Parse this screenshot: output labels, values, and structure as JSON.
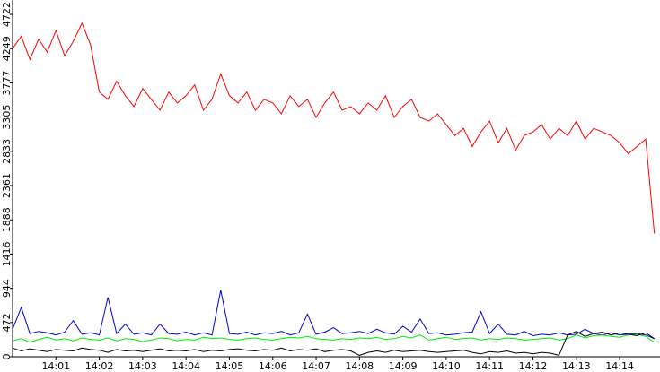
{
  "chart_data": {
    "type": "line",
    "x": [
      840,
      840.2,
      840.4,
      840.6,
      840.8,
      841,
      841.2,
      841.4,
      841.6,
      841.8,
      842,
      842.2,
      842.4,
      842.6,
      842.8,
      843,
      843.2,
      843.4,
      843.6,
      843.8,
      844,
      844.2,
      844.4,
      844.6,
      844.8,
      845,
      845.2,
      845.4,
      845.6,
      845.8,
      846,
      846.2,
      846.4,
      846.6,
      846.8,
      847,
      847.2,
      847.4,
      847.6,
      847.8,
      848,
      848.2,
      848.4,
      848.6,
      848.8,
      849,
      849.2,
      849.4,
      849.6,
      849.8,
      850,
      850.2,
      850.4,
      850.6,
      850.8,
      851,
      851.2,
      851.4,
      851.6,
      851.8,
      852,
      852.2,
      852.4,
      852.6,
      852.8,
      853,
      853.2,
      853.4,
      853.6,
      853.8,
      854,
      854.2,
      854.4,
      854.6,
      854.8
    ],
    "series": [
      {
        "color": "#ff0000",
        "values": [
          4250,
          4420,
          4100,
          4380,
          4200,
          4500,
          4150,
          4350,
          4600,
          4300,
          3650,
          3550,
          3800,
          3600,
          3450,
          3700,
          3550,
          3400,
          3650,
          3500,
          3600,
          3750,
          3400,
          3550,
          3900,
          3600,
          3500,
          3650,
          3400,
          3550,
          3500,
          3350,
          3600,
          3450,
          3550,
          3300,
          3500,
          3650,
          3400,
          3450,
          3350,
          3500,
          3400,
          3600,
          3300,
          3450,
          3550,
          3300,
          3250,
          3350,
          3200,
          3050,
          3150,
          2900,
          3100,
          3250,
          2950,
          3150,
          2850,
          3050,
          3100,
          3200,
          3000,
          3150,
          3050,
          3250,
          3000,
          3150,
          3100,
          3050,
          2950,
          2800,
          2900,
          3000,
          1700
        ]
      },
      {
        "color": "#0000cc",
        "values": [
          380,
          680,
          320,
          350,
          330,
          300,
          340,
          500,
          310,
          330,
          300,
          820,
          320,
          450,
          310,
          330,
          300,
          450,
          320,
          310,
          340,
          300,
          330,
          300,
          920,
          320,
          310,
          340,
          300,
          330,
          320,
          350,
          300,
          330,
          590,
          310,
          340,
          400,
          320,
          330,
          350,
          320,
          380,
          330,
          310,
          420,
          340,
          520,
          320,
          330,
          300,
          310,
          330,
          340,
          620,
          320,
          450,
          310,
          300,
          350,
          290,
          310,
          300,
          330,
          300,
          310,
          380,
          320,
          300,
          330,
          300,
          310,
          320,
          300,
          250
        ]
      },
      {
        "color": "#00ee00",
        "values": [
          220,
          250,
          200,
          240,
          270,
          230,
          250,
          220,
          260,
          240,
          230,
          260,
          220,
          250,
          240,
          210,
          230,
          260,
          250,
          220,
          240,
          230,
          270,
          250,
          260,
          240,
          230,
          250,
          260,
          240,
          230,
          250,
          270,
          260,
          280,
          250,
          240,
          230,
          250,
          240,
          260,
          250,
          270,
          240,
          250,
          280,
          260,
          300,
          230,
          250,
          270,
          240,
          250,
          260,
          230,
          250,
          240,
          260,
          250,
          230,
          240,
          250,
          260,
          230,
          250,
          300,
          260,
          290,
          300,
          280,
          270,
          300,
          310,
          280,
          200
        ]
      },
      {
        "color": "#000000",
        "values": [
          120,
          80,
          110,
          90,
          70,
          100,
          90,
          80,
          120,
          100,
          90,
          60,
          100,
          80,
          90,
          70,
          90,
          110,
          80,
          90,
          80,
          100,
          70,
          90,
          80,
          100,
          110,
          90,
          80,
          100,
          90,
          120,
          80,
          100,
          90,
          110,
          70,
          90,
          100,
          80,
          20,
          60,
          80,
          60,
          90,
          70,
          80,
          90,
          70,
          60,
          70,
          80,
          90,
          60,
          40,
          70,
          60,
          80,
          50,
          60,
          40,
          60,
          50,
          20,
          300,
          350,
          280,
          320,
          340,
          300,
          330,
          310,
          290,
          330,
          250
        ]
      }
    ],
    "xlim": [
      840,
      854.93
    ],
    "xticks": [
      {
        "value": 841,
        "label": "14:01"
      },
      {
        "value": 842,
        "label": "14:02"
      },
      {
        "value": 843,
        "label": "14:03"
      },
      {
        "value": 844,
        "label": "14:04"
      },
      {
        "value": 845,
        "label": "14:05"
      },
      {
        "value": 846,
        "label": "14:06"
      },
      {
        "value": 847,
        "label": "14:07"
      },
      {
        "value": 848,
        "label": "14:08"
      },
      {
        "value": 849,
        "label": "14:09"
      },
      {
        "value": 850,
        "label": "14:10"
      },
      {
        "value": 851,
        "label": "14:11"
      },
      {
        "value": 852,
        "label": "14:12"
      },
      {
        "value": 853,
        "label": "14:13"
      },
      {
        "value": 854,
        "label": "14:14"
      }
    ],
    "ylim": [
      0,
      4920
    ],
    "yticks": [
      0,
      472,
      944,
      1416,
      1888,
      2361,
      2833,
      3305,
      3777,
      4249,
      4722
    ]
  }
}
